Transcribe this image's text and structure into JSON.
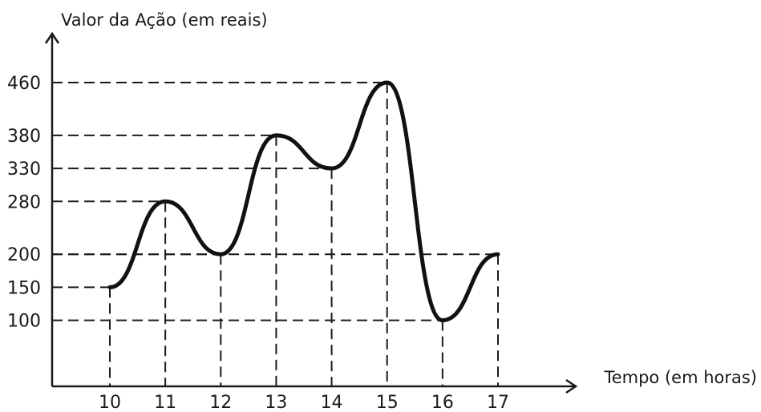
{
  "chart_data": {
    "type": "line",
    "title": "",
    "ylabel": "Valor da Ação (em reais)",
    "xlabel": "Tempo (em horas)",
    "x": [
      10,
      11,
      12,
      13,
      14,
      15,
      16,
      17
    ],
    "values": [
      150,
      280,
      200,
      380,
      330,
      460,
      100,
      200
    ],
    "xticks": [
      "10",
      "11",
      "12",
      "13",
      "14",
      "15",
      "16",
      "17"
    ],
    "yticks": [
      100,
      150,
      200,
      280,
      330,
      380,
      460
    ],
    "yticks_labels": [
      "100",
      "150",
      "200",
      "280",
      "330",
      "380",
      "460"
    ],
    "xlim": [
      9,
      18.5
    ],
    "ylim": [
      0,
      540
    ],
    "grid": false,
    "legend": "none",
    "line_color": "#111111"
  }
}
